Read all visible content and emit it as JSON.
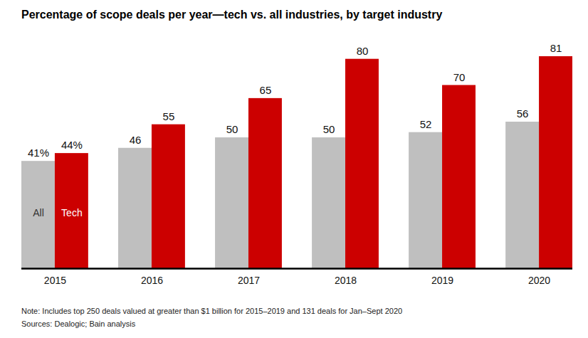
{
  "chart_data": {
    "type": "bar",
    "title": "Percentage of scope deals per year—tech vs. all industries, by target industry",
    "categories": [
      "2015",
      "2016",
      "2017",
      "2018",
      "2019",
      "2020"
    ],
    "series": [
      {
        "name": "All",
        "color": "#bfbfbf",
        "values": [
          41,
          46,
          50,
          50,
          52,
          56
        ],
        "value_labels": [
          "41%",
          "46",
          "50",
          "50",
          "52",
          "56"
        ]
      },
      {
        "name": "Tech",
        "color": "#cc0000",
        "values": [
          44,
          55,
          65,
          80,
          70,
          81
        ],
        "value_labels": [
          "44%",
          "55",
          "65",
          "80",
          "70",
          "81"
        ]
      }
    ],
    "ylim": [
      0,
      81
    ],
    "data_labels": true,
    "tick_labels": "x",
    "note": "Note: Includes top 250 deals valued at greater than $1 billion for 2015–2019 and 131 deals for Jan–Sept 2020",
    "source": "Sources: Dealogic; Bain analysis"
  }
}
